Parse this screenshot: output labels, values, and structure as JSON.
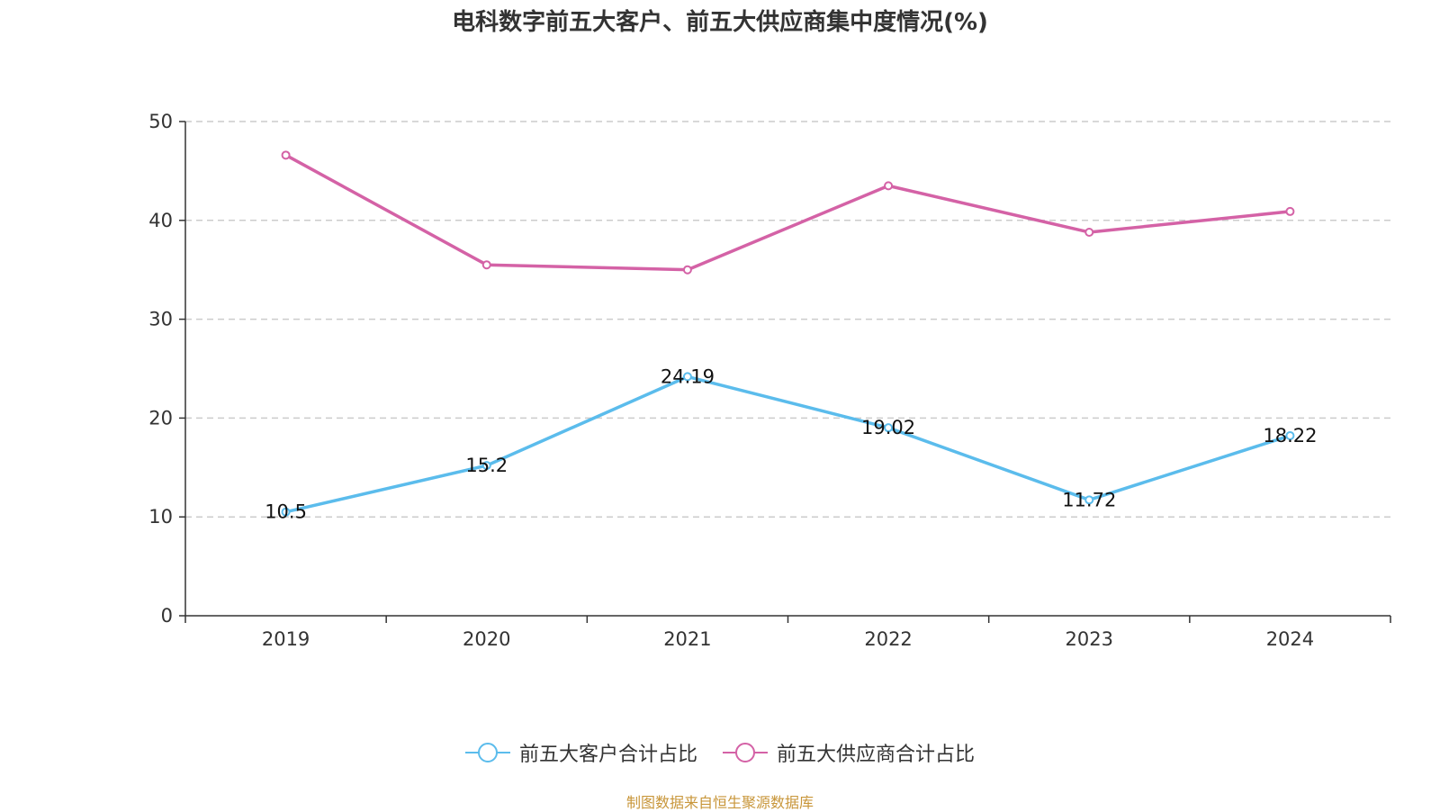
{
  "chart_data": {
    "type": "line",
    "title": "电科数字前五大客户、前五大供应商集中度情况(%)",
    "categories": [
      "2019",
      "2020",
      "2021",
      "2022",
      "2023",
      "2024"
    ],
    "ylim": [
      0,
      50
    ],
    "yticks": [
      0,
      10,
      20,
      30,
      40,
      50
    ],
    "grid": "horizontal dashed",
    "legend_position": "bottom-center",
    "series": [
      {
        "name": "前五大客户合计占比",
        "color": "#5bbcec",
        "values": [
          10.5,
          15.2,
          24.19,
          19.02,
          11.72,
          18.22
        ],
        "labels": [
          "10.5",
          "15.2",
          "24.19",
          "19.02",
          "11.72",
          "18.22"
        ]
      },
      {
        "name": "前五大供应商合计占比",
        "color": "#d462a6",
        "values": [
          46.6,
          35.5,
          35.0,
          43.5,
          38.8,
          40.9
        ]
      }
    ]
  },
  "footer": {
    "source": "制图数据来自恒生聚源数据库"
  }
}
